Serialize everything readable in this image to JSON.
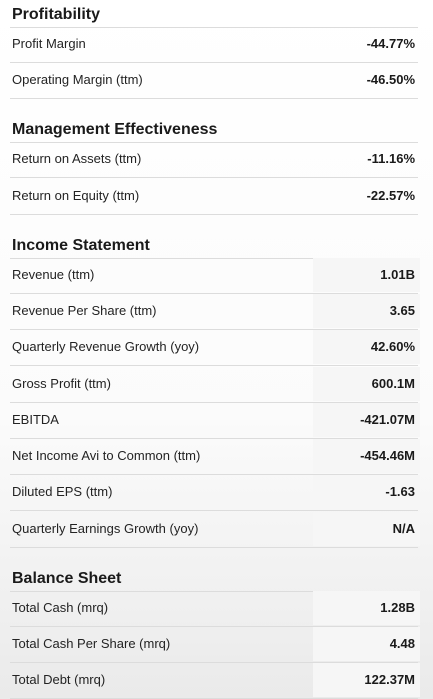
{
  "sections": [
    {
      "title": "Profitability",
      "rows": [
        [
          "Profit Margin",
          "-44.77%"
        ],
        [
          "Operating Margin (ttm)",
          "-46.50%"
        ]
      ]
    },
    {
      "title": "Management Effectiveness",
      "rows": [
        [
          "Return on Assets (ttm)",
          "-11.16%"
        ],
        [
          "Return on Equity (ttm)",
          "-22.57%"
        ]
      ]
    },
    {
      "title": "Income Statement",
      "rows": [
        [
          "Revenue (ttm)",
          "1.01B"
        ],
        [
          "Revenue Per Share (ttm)",
          "3.65"
        ],
        [
          "Quarterly Revenue Growth (yoy)",
          "42.60%"
        ],
        [
          "Gross Profit (ttm)",
          "600.1M"
        ],
        [
          "EBITDA",
          "-421.07M"
        ],
        [
          "Net Income Avi to Common (ttm)",
          "-454.46M"
        ],
        [
          "Diluted EPS (ttm)",
          "-1.63"
        ],
        [
          "Quarterly Earnings Growth (yoy)",
          "N/A"
        ]
      ]
    },
    {
      "title": "Balance Sheet",
      "rows": [
        [
          "Total Cash (mrq)",
          "1.28B"
        ],
        [
          "Total Cash Per Share (mrq)",
          "4.48"
        ],
        [
          "Total Debt (mrq)",
          "122.37M"
        ]
      ]
    }
  ]
}
